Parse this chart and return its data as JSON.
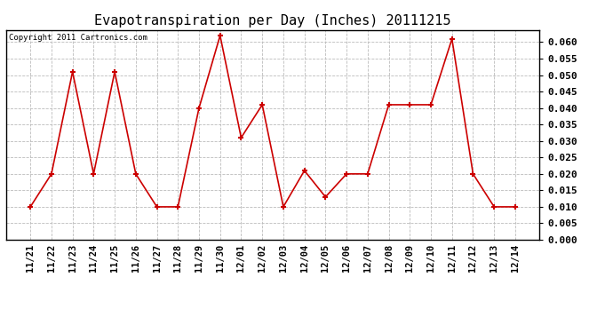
{
  "title": "Evapotranspiration per Day (Inches) 20111215",
  "copyright": "Copyright 2011 Cartronics.com",
  "dates": [
    "11/21",
    "11/22",
    "11/23",
    "11/24",
    "11/25",
    "11/26",
    "11/27",
    "11/28",
    "11/29",
    "11/30",
    "12/01",
    "12/02",
    "12/03",
    "12/04",
    "12/05",
    "12/06",
    "12/07",
    "12/08",
    "12/09",
    "12/10",
    "12/11",
    "12/12",
    "12/13",
    "12/14"
  ],
  "values": [
    0.01,
    0.02,
    0.051,
    0.02,
    0.051,
    0.02,
    0.01,
    0.01,
    0.04,
    0.062,
    0.031,
    0.041,
    0.01,
    0.021,
    0.013,
    0.02,
    0.02,
    0.041,
    0.041,
    0.041,
    0.061,
    0.02,
    0.01,
    0.01
  ],
  "line_color": "#cc0000",
  "marker": "+",
  "ylim": [
    0.0,
    0.0637
  ],
  "yticks": [
    0.0,
    0.005,
    0.01,
    0.015,
    0.02,
    0.025,
    0.03,
    0.035,
    0.04,
    0.045,
    0.05,
    0.055,
    0.06
  ],
  "bg_color": "#ffffff",
  "grid_color": "#bbbbbb",
  "title_fontsize": 11,
  "copyright_fontsize": 6.5,
  "tick_fontsize": 7.5,
  "ytick_fontsize": 8
}
